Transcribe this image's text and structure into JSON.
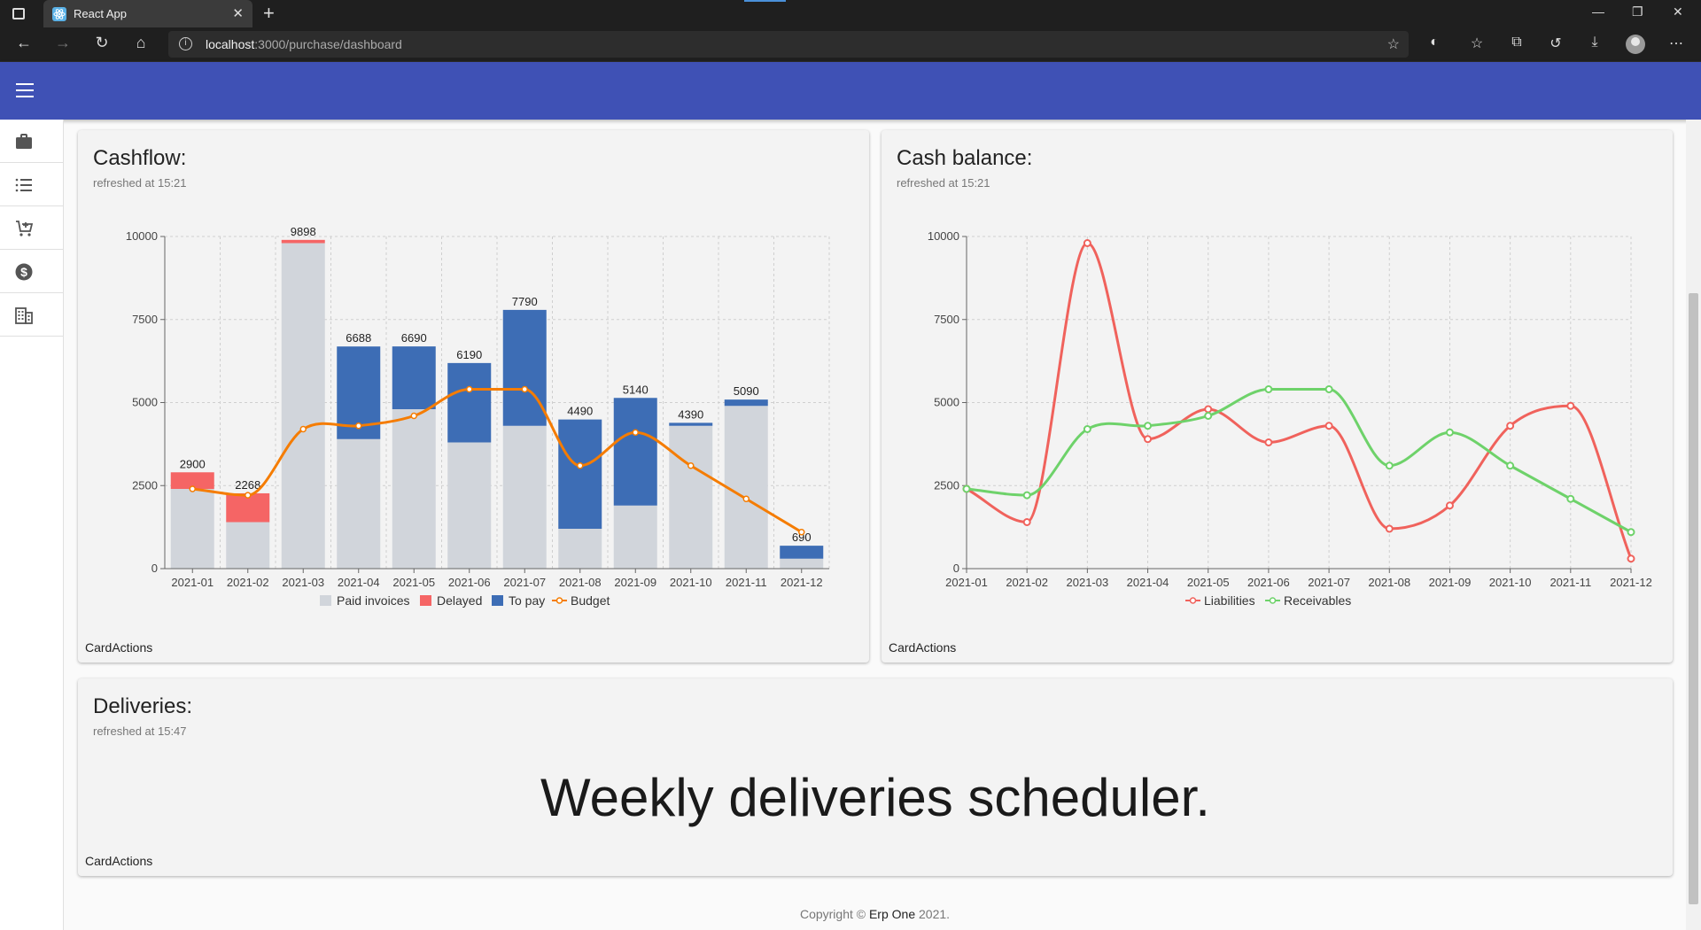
{
  "browser": {
    "tab_title": "React App",
    "address_host": "localhost",
    "address_path": ":3000/purchase/dashboard"
  },
  "sidebar": {
    "items": [
      {
        "icon": "briefcase-icon"
      },
      {
        "icon": "list-icon"
      },
      {
        "icon": "cart-icon"
      },
      {
        "icon": "dollar-icon"
      },
      {
        "icon": "building-icon"
      }
    ]
  },
  "cashflow": {
    "title": "Cashflow:",
    "subtitle": "refreshed at 15:21",
    "actions_label": "CardActions"
  },
  "balance": {
    "title": "Cash balance:",
    "subtitle": "refreshed at 15:21",
    "actions_label": "CardActions"
  },
  "deliveries": {
    "title": "Deliveries:",
    "subtitle": "refreshed at 15:47",
    "body": "Weekly deliveries scheduler.",
    "actions_label": "CardActions"
  },
  "footer": {
    "prefix": "Copyright © ",
    "brand": "Erp One",
    "suffix": " 2021."
  },
  "colors": {
    "appbar": "#3f51b5",
    "paid": "#d1d5db",
    "delayed": "#f56565",
    "topay": "#3d6db5",
    "budget": "#f57c00",
    "liabilities": "#f0625c",
    "receivables": "#6ed26a"
  },
  "chart_data": [
    {
      "type": "bar",
      "stacked": true,
      "categories": [
        "2021-01",
        "2021-02",
        "2021-03",
        "2021-04",
        "2021-05",
        "2021-06",
        "2021-07",
        "2021-08",
        "2021-09",
        "2021-10",
        "2021-11",
        "2021-12"
      ],
      "series": [
        {
          "name": "Paid invoices",
          "values": [
            2400,
            1400,
            9800,
            3900,
            4800,
            3800,
            4300,
            1200,
            1900,
            4300,
            4900,
            300
          ]
        },
        {
          "name": "Delayed",
          "values": [
            500,
            868,
            98,
            0,
            0,
            0,
            0,
            0,
            0,
            0,
            0,
            0
          ]
        },
        {
          "name": "To pay",
          "values": [
            0,
            0,
            0,
            2788,
            1890,
            2390,
            3490,
            3290,
            3240,
            90,
            190,
            390
          ]
        },
        {
          "name": "Budget",
          "type": "line",
          "values": [
            2400,
            2210,
            4200,
            4300,
            4600,
            5400,
            5400,
            3100,
            4100,
            3100,
            2100,
            1100
          ]
        }
      ],
      "totals": [
        2900,
        2268,
        9898,
        6688,
        6690,
        6190,
        7790,
        4490,
        5140,
        4390,
        5090,
        690
      ],
      "yticks": [
        0,
        2500,
        5000,
        7500,
        10000
      ],
      "ylim": [
        0,
        10000
      ],
      "grid": true,
      "legend": "bottom"
    },
    {
      "type": "line",
      "categories": [
        "2021-01",
        "2021-02",
        "2021-03",
        "2021-04",
        "2021-05",
        "2021-06",
        "2021-07",
        "2021-08",
        "2021-09",
        "2021-10",
        "2021-11",
        "2021-12"
      ],
      "series": [
        {
          "name": "Liabilities",
          "values": [
            2400,
            1400,
            9800,
            3900,
            4800,
            3800,
            4300,
            1200,
            1900,
            4300,
            4900,
            300
          ]
        },
        {
          "name": "Receivables",
          "values": [
            2400,
            2210,
            4200,
            4300,
            4600,
            5400,
            5400,
            3100,
            4100,
            3100,
            2100,
            1100
          ]
        }
      ],
      "yticks": [
        0,
        2500,
        5000,
        7500,
        10000
      ],
      "ylim": [
        0,
        10000
      ],
      "grid": true,
      "legend": "bottom"
    }
  ]
}
